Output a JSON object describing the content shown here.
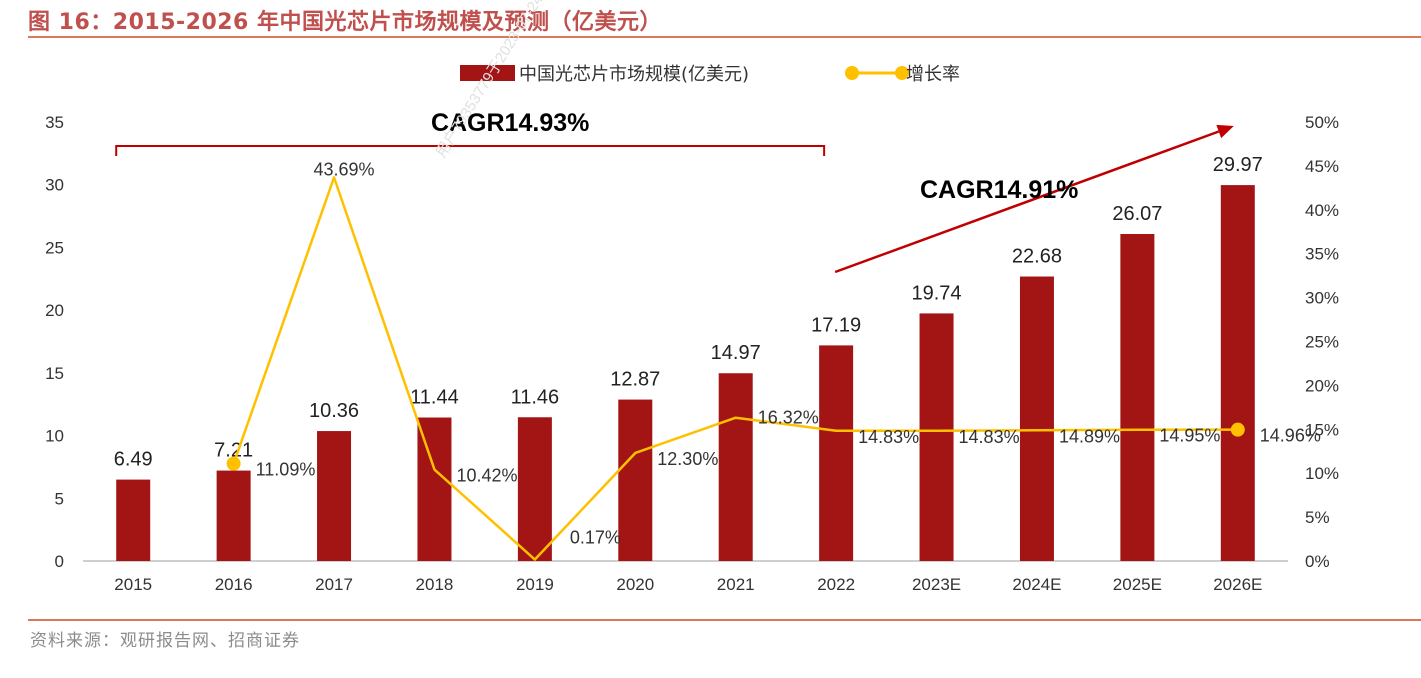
{
  "figure": {
    "title": "图 16：2015-2026 年中国光芯片市场规模及预测（亿美元）",
    "source": "资料来源：观研报告网、招商证券",
    "watermark": "用户79353779于2023-07-24"
  },
  "chart_data": {
    "type": "bar",
    "categories": [
      "2015",
      "2016",
      "2017",
      "2018",
      "2019",
      "2020",
      "2021",
      "2022",
      "2023E",
      "2024E",
      "2025E",
      "2026E"
    ],
    "series": [
      {
        "name": "中国光芯片市场规模(亿美元)",
        "type": "bar",
        "axis": "left",
        "color": "#a31515",
        "values": [
          6.49,
          7.21,
          10.36,
          11.44,
          11.46,
          12.87,
          14.97,
          17.19,
          19.74,
          22.68,
          26.07,
          29.97
        ],
        "labels": [
          "6.49",
          "7.21",
          "10.36",
          "11.44",
          "11.46",
          "12.87",
          "14.97",
          "17.19",
          "19.74",
          "22.68",
          "26.07",
          "29.97"
        ]
      },
      {
        "name": "增长率",
        "type": "line",
        "axis": "right",
        "color": "#ffc000",
        "values": [
          null,
          11.09,
          43.69,
          10.42,
          0.17,
          12.3,
          16.32,
          14.83,
          14.83,
          14.89,
          14.95,
          14.96
        ],
        "labels": [
          null,
          "11.09%",
          "43.69%",
          "10.42%",
          "0.17%",
          "12.30%",
          "16.32%",
          "14.83%",
          "14.83%",
          "14.89%",
          "14.95%",
          "14.96%"
        ],
        "markers_at": [
          "2016",
          "2026E"
        ]
      }
    ],
    "y_left": {
      "ylim": [
        0,
        35
      ],
      "ticks": [
        0,
        5,
        10,
        15,
        20,
        25,
        30,
        35
      ],
      "tick_labels": [
        "0",
        "5",
        "10",
        "15",
        "20",
        "25",
        "30",
        "35"
      ]
    },
    "y_right": {
      "ylim": [
        0,
        50
      ],
      "ticks": [
        0,
        5,
        10,
        15,
        20,
        25,
        30,
        35,
        40,
        45,
        50
      ],
      "tick_labels": [
        "0%",
        "5%",
        "10%",
        "15%",
        "20%",
        "25%",
        "30%",
        "35%",
        "40%",
        "45%",
        "50%"
      ]
    },
    "annotations": [
      {
        "text": "CAGR14.93%",
        "kind": "bracket",
        "from": "2015",
        "to": "2022"
      },
      {
        "text": "CAGR14.91%",
        "kind": "arrow",
        "from": "2022",
        "to": "2026E"
      }
    ],
    "legend": {
      "position": "top-center"
    },
    "grid": false
  }
}
